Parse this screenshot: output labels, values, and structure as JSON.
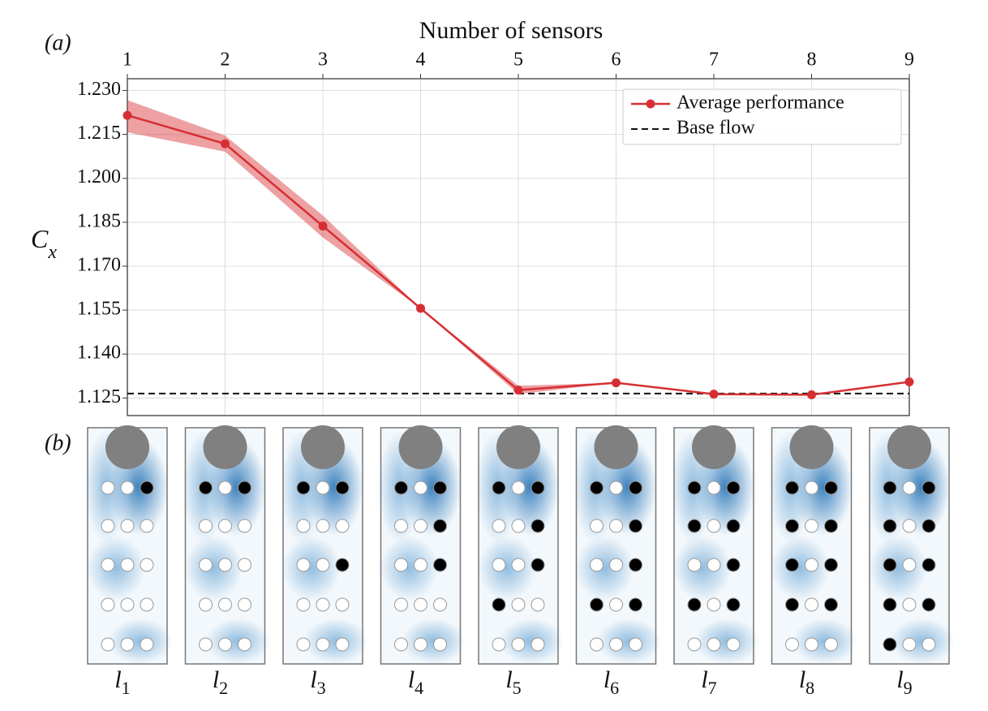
{
  "chart_data": {
    "type": "line",
    "panel_label": "(a)",
    "xlabel": "Number of sensors",
    "ylabel": "C",
    "ylabel_sub": "x",
    "x": [
      1,
      2,
      3,
      4,
      5,
      6,
      7,
      8,
      9
    ],
    "xlim": [
      1,
      9
    ],
    "xticks": [
      1,
      2,
      3,
      4,
      5,
      6,
      7,
      8,
      9
    ],
    "ylim": [
      1.119,
      1.234
    ],
    "yticks": [
      {
        "value": 1.125,
        "label": "1.125"
      },
      {
        "value": 1.14,
        "label": "1.140"
      },
      {
        "value": 1.155,
        "label": "1.155"
      },
      {
        "value": 1.17,
        "label": "1.170"
      },
      {
        "value": 1.185,
        "label": "1.185"
      },
      {
        "value": 1.2,
        "label": "1.200"
      },
      {
        "value": 1.215,
        "label": "1.215"
      },
      {
        "value": 1.23,
        "label": "1.230"
      }
    ],
    "grid": true,
    "legend": "upper right",
    "series": [
      {
        "name": "Average performance",
        "color": "#d62f33",
        "values": [
          1.2215,
          1.2118,
          1.1837,
          1.1556,
          1.1277,
          1.1302,
          1.1263,
          1.1261,
          1.1305
        ],
        "lower": [
          1.2157,
          1.2091,
          1.1798,
          1.1556,
          1.1263,
          1.1302,
          1.1263,
          1.1261,
          1.1305
        ],
        "upper": [
          1.2267,
          1.2146,
          1.1873,
          1.1556,
          1.1292,
          1.1302,
          1.1263,
          1.1261,
          1.1305
        ]
      }
    ],
    "hline": {
      "name": "Base flow",
      "color": "#111111",
      "value": 1.1265
    }
  },
  "panel_b": {
    "label": "(b)",
    "layouts": [
      {
        "label": "l",
        "sub": "1",
        "grid": [
          [
            0,
            0,
            1
          ],
          [
            0,
            0,
            0
          ],
          [
            0,
            0,
            0
          ],
          [
            0,
            0,
            0
          ],
          [
            0,
            0,
            0
          ]
        ]
      },
      {
        "label": "l",
        "sub": "2",
        "grid": [
          [
            1,
            0,
            1
          ],
          [
            0,
            0,
            0
          ],
          [
            0,
            0,
            0
          ],
          [
            0,
            0,
            0
          ],
          [
            0,
            0,
            0
          ]
        ]
      },
      {
        "label": "l",
        "sub": "3",
        "grid": [
          [
            1,
            0,
            1
          ],
          [
            0,
            0,
            0
          ],
          [
            0,
            0,
            1
          ],
          [
            0,
            0,
            0
          ],
          [
            0,
            0,
            0
          ]
        ]
      },
      {
        "label": "l",
        "sub": "4",
        "grid": [
          [
            1,
            0,
            1
          ],
          [
            0,
            0,
            1
          ],
          [
            0,
            0,
            1
          ],
          [
            0,
            0,
            0
          ],
          [
            0,
            0,
            0
          ]
        ]
      },
      {
        "label": "l",
        "sub": "5",
        "grid": [
          [
            1,
            0,
            1
          ],
          [
            0,
            0,
            1
          ],
          [
            0,
            0,
            1
          ],
          [
            1,
            0,
            0
          ],
          [
            0,
            0,
            0
          ]
        ]
      },
      {
        "label": "l",
        "sub": "6",
        "grid": [
          [
            1,
            0,
            1
          ],
          [
            0,
            0,
            1
          ],
          [
            0,
            0,
            1
          ],
          [
            1,
            0,
            1
          ],
          [
            0,
            0,
            0
          ]
        ]
      },
      {
        "label": "l",
        "sub": "7",
        "grid": [
          [
            1,
            0,
            1
          ],
          [
            1,
            0,
            1
          ],
          [
            0,
            0,
            1
          ],
          [
            1,
            0,
            1
          ],
          [
            0,
            0,
            0
          ]
        ]
      },
      {
        "label": "l",
        "sub": "8",
        "grid": [
          [
            1,
            0,
            1
          ],
          [
            1,
            0,
            1
          ],
          [
            1,
            0,
            1
          ],
          [
            1,
            0,
            1
          ],
          [
            0,
            0,
            0
          ]
        ]
      },
      {
        "label": "l",
        "sub": "9",
        "grid": [
          [
            1,
            0,
            1
          ],
          [
            1,
            0,
            1
          ],
          [
            1,
            0,
            1
          ],
          [
            1,
            0,
            1
          ],
          [
            1,
            0,
            0
          ]
        ]
      }
    ]
  }
}
